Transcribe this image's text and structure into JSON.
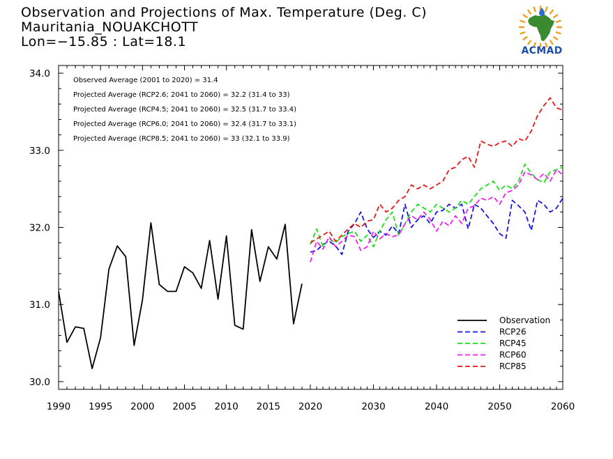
{
  "header": {
    "title": "Observation and Projections of Max. Temperature (Deg. C)",
    "subtitle": "Mauritania_NOUAKCHOTT",
    "coords": "Lon=−15.85 : Lat=18.1"
  },
  "logo": {
    "text": "ACMAD",
    "colors": {
      "africa": "#3a8a2e",
      "rays": "#f0a020",
      "drop": "#2a6fd0",
      "text": "#1d4ea8"
    }
  },
  "chart_data": {
    "type": "line",
    "xlim": [
      1990,
      2060
    ],
    "ylim": [
      29.9,
      34.1
    ],
    "xticks": [
      1990,
      1995,
      2000,
      2005,
      2010,
      2015,
      2020,
      2030,
      2040,
      2050,
      2060
    ],
    "xtick_labels": [
      "1990",
      "1995",
      "2000",
      "2005",
      "2010",
      "2015",
      "2020",
      "2030",
      "2040",
      "2050",
      "2060"
    ],
    "yticks": [
      30,
      31,
      32,
      33,
      34
    ],
    "ytick_labels": [
      "30.0",
      "31.0",
      "32.0",
      "33.0",
      "34.0"
    ],
    "grid": false,
    "legend_position": "bottom-right",
    "annotations": [
      "Observed Average (2001 to 2020) = 31.4",
      "Projected Average (RCP2.6; 2041 to 2060) = 32.2 (31.4 to 33)",
      "Projected Average (RCP4.5; 2041 to 2060) = 32.5 (31.7 to 33.4)",
      "Projected Average (RCP6.0; 2041 to 2060) = 32.4 (31.7 to 33.1)",
      "Projected Average (RCP8.5; 2041 to 2060) = 33 (32.1 to 33.9)"
    ],
    "series": [
      {
        "name": "Observation",
        "color": "#000000",
        "dash": "solid",
        "x": [
          1990,
          1991,
          1992,
          1993,
          1994,
          1995,
          1996,
          1997,
          1998,
          1999,
          2000,
          2001,
          2002,
          2003,
          2004,
          2005,
          2006,
          2007,
          2008,
          2009,
          2010,
          2011,
          2012,
          2013,
          2014,
          2015,
          2016,
          2017,
          2018,
          2019
        ],
        "y": [
          31.17,
          30.51,
          30.71,
          30.69,
          30.17,
          30.57,
          31.46,
          31.76,
          31.62,
          30.47,
          31.06,
          32.06,
          31.26,
          31.17,
          31.17,
          31.49,
          31.41,
          31.21,
          31.83,
          31.07,
          31.89,
          30.73,
          30.68,
          31.97,
          31.3,
          31.75,
          31.59,
          32.04,
          30.75,
          31.27
        ]
      },
      {
        "name": "RCP26",
        "color": "#1515e0",
        "dash": "dashed",
        "x": [
          2020,
          2021,
          2022,
          2023,
          2024,
          2025,
          2026,
          2027,
          2028,
          2029,
          2030,
          2031,
          2032,
          2033,
          2034,
          2035,
          2036,
          2037,
          2038,
          2039,
          2040,
          2041,
          2042,
          2043,
          2044,
          2045,
          2046,
          2047,
          2048,
          2049,
          2050,
          2051,
          2052,
          2053,
          2054,
          2055,
          2056,
          2057,
          2058,
          2059,
          2060
        ],
        "y": [
          31.68,
          31.7,
          31.78,
          31.82,
          31.76,
          31.65,
          31.95,
          32.05,
          32.2,
          31.98,
          31.87,
          31.95,
          31.9,
          32.02,
          31.92,
          32.3,
          32.0,
          32.1,
          32.15,
          32.05,
          32.2,
          32.22,
          32.3,
          32.25,
          32.3,
          31.98,
          32.3,
          32.25,
          32.15,
          32.05,
          31.92,
          31.86,
          32.35,
          32.28,
          32.2,
          31.96,
          32.35,
          32.3,
          32.2,
          32.25,
          32.38
        ]
      },
      {
        "name": "RCP45",
        "color": "#18e018",
        "dash": "dashed",
        "x": [
          2020,
          2021,
          2022,
          2023,
          2024,
          2025,
          2026,
          2027,
          2028,
          2029,
          2030,
          2031,
          2032,
          2033,
          2034,
          2035,
          2036,
          2037,
          2038,
          2039,
          2040,
          2041,
          2042,
          2043,
          2044,
          2045,
          2046,
          2047,
          2048,
          2049,
          2050,
          2051,
          2052,
          2053,
          2054,
          2055,
          2056,
          2057,
          2058,
          2059,
          2060
        ],
        "y": [
          31.78,
          31.98,
          31.75,
          31.85,
          31.8,
          31.88,
          31.92,
          31.95,
          31.82,
          31.9,
          31.75,
          31.95,
          32.1,
          32.2,
          31.9,
          32.05,
          32.2,
          32.3,
          32.25,
          32.2,
          32.3,
          32.25,
          32.2,
          32.25,
          32.35,
          32.3,
          32.4,
          32.5,
          32.55,
          32.6,
          32.48,
          32.55,
          32.5,
          32.6,
          32.82,
          32.7,
          32.62,
          32.58,
          32.72,
          32.75,
          32.78
        ]
      },
      {
        "name": "RCP60",
        "color": "#f020f0",
        "dash": "dashed",
        "x": [
          2020,
          2021,
          2022,
          2023,
          2024,
          2025,
          2026,
          2027,
          2028,
          2029,
          2030,
          2031,
          2032,
          2033,
          2034,
          2035,
          2036,
          2037,
          2038,
          2039,
          2040,
          2041,
          2042,
          2043,
          2044,
          2045,
          2046,
          2047,
          2048,
          2049,
          2050,
          2051,
          2052,
          2053,
          2054,
          2055,
          2056,
          2057,
          2058,
          2059,
          2060
        ],
        "y": [
          31.55,
          31.82,
          31.72,
          31.88,
          31.75,
          31.82,
          31.9,
          31.88,
          31.7,
          31.75,
          31.95,
          31.85,
          31.92,
          31.88,
          31.9,
          32.05,
          32.15,
          32.1,
          32.2,
          32.1,
          31.95,
          32.08,
          32.02,
          32.15,
          32.05,
          32.25,
          32.28,
          32.38,
          32.35,
          32.4,
          32.3,
          32.45,
          32.48,
          32.55,
          32.72,
          32.68,
          32.62,
          32.7,
          32.6,
          32.75,
          32.68
        ]
      },
      {
        "name": "RCP85",
        "color": "#e81515",
        "dash": "dashed",
        "x": [
          2020,
          2021,
          2022,
          2023,
          2024,
          2025,
          2026,
          2027,
          2028,
          2029,
          2030,
          2031,
          2032,
          2033,
          2034,
          2035,
          2036,
          2037,
          2038,
          2039,
          2040,
          2041,
          2042,
          2043,
          2044,
          2045,
          2046,
          2047,
          2048,
          2049,
          2050,
          2051,
          2052,
          2053,
          2054,
          2055,
          2056,
          2057,
          2058,
          2059,
          2060
        ],
        "y": [
          31.8,
          31.85,
          31.9,
          31.95,
          31.82,
          31.9,
          31.98,
          32.05,
          32.0,
          32.08,
          32.1,
          32.3,
          32.2,
          32.25,
          32.35,
          32.4,
          32.55,
          32.5,
          32.55,
          32.5,
          32.55,
          32.6,
          32.75,
          32.78,
          32.88,
          32.92,
          32.78,
          33.12,
          33.08,
          33.05,
          33.1,
          33.12,
          33.05,
          33.15,
          33.12,
          33.25,
          33.45,
          33.58,
          33.68,
          33.55,
          33.52
        ]
      }
    ]
  }
}
